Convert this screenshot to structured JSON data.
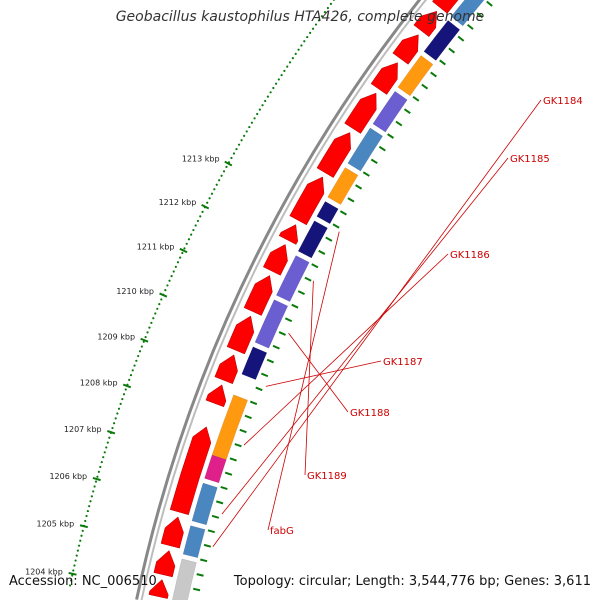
{
  "title": "Geobacillus kaustophilus HTA426, complete genome",
  "footer": {
    "accession": "Accession: NC_006510",
    "summary": "Topology: circular; Length: 3,544,776 bp; Genes: 3,611"
  },
  "ticks": [
    {
      "label": "1204 kbp"
    },
    {
      "label": "1205 kbp"
    },
    {
      "label": "1206 kbp"
    },
    {
      "label": "1207 kbp"
    },
    {
      "label": "1208 kbp"
    },
    {
      "label": "1209 kbp"
    },
    {
      "label": "1210 kbp"
    },
    {
      "label": "1211 kbp"
    },
    {
      "label": "1212 kbp"
    },
    {
      "label": "1213 kbp"
    }
  ],
  "gene_labels": [
    {
      "label": "GK1184"
    },
    {
      "label": "GK1185"
    },
    {
      "label": "GK1186"
    },
    {
      "label": "GK1187"
    },
    {
      "label": "GK1188"
    },
    {
      "label": "GK1189"
    },
    {
      "label": "fabG"
    }
  ],
  "colors": {
    "backbone": "#888888",
    "cds_forward": "#ff0000",
    "blue": "#4a86c0",
    "magenta": "#e0208a",
    "orange": "#ff9a10",
    "navy": "#14147a",
    "violet": "#6a5ed0",
    "grey_feature": "#c8c8c8",
    "tick_green": "#0a7a0a",
    "label_red": "#cc0000"
  }
}
